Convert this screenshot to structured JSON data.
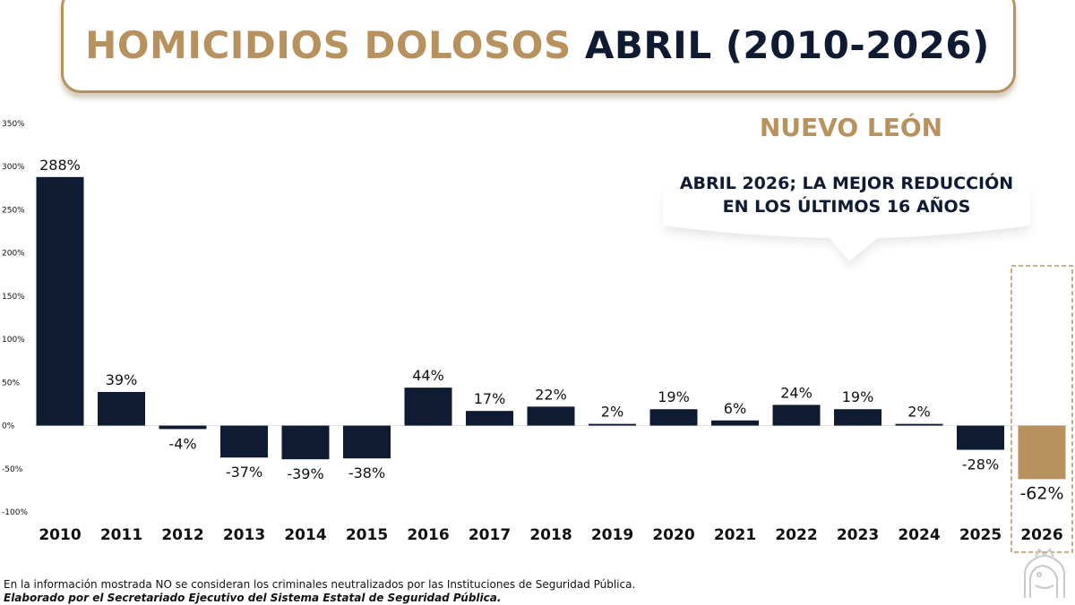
{
  "header": {
    "title_part1": "HOMICIDIOS DOLOSOS",
    "title_part2": "ABRIL (2010-2026)"
  },
  "region": "NUEVO LEÓN",
  "callout": {
    "line1": "ABRIL 2026; LA MEJOR REDUCCIÓN",
    "line2": "EN LOS ÚLTIMOS 16 AÑOS"
  },
  "footnotes": {
    "line1": "En la información mostrada NO se consideran los criminales neutralizados por las Instituciones de Seguridad Pública.",
    "line2": "Elaborado por el Secretariado Ejecutivo del Sistema Estatal de Seguridad Pública."
  },
  "colors": {
    "bar": "#0f1b33",
    "highlight": "#b8925e"
  },
  "chart_data": {
    "type": "bar",
    "categories": [
      "2010",
      "2011",
      "2012",
      "2013",
      "2014",
      "2015",
      "2016",
      "2017",
      "2018",
      "2019",
      "2020",
      "2021",
      "2022",
      "2023",
      "2024",
      "2025",
      "2026"
    ],
    "values": [
      288,
      39,
      -4,
      -37,
      -39,
      -38,
      44,
      17,
      22,
      2,
      19,
      6,
      24,
      19,
      2,
      -28,
      -62
    ],
    "data_labels": [
      "288%",
      "39%",
      "-4%",
      "-37%",
      "-39%",
      "-38%",
      "44%",
      "17%",
      "22%",
      "2%",
      "19%",
      "6%",
      "24%",
      "19%",
      "2%",
      "-28%",
      "-62%"
    ],
    "y_ticks": [
      350,
      300,
      250,
      200,
      150,
      100,
      50,
      0,
      -50,
      -100
    ],
    "y_tick_labels": [
      "350%",
      "300%",
      "250%",
      "200%",
      "150%",
      "100%",
      "50%",
      "0%",
      "-50%",
      "-100%"
    ],
    "ylim": [
      -100,
      350
    ],
    "highlight_category": "2026",
    "grid": false
  }
}
